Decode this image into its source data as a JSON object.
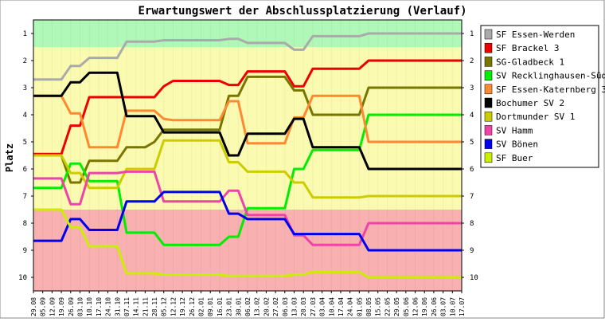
{
  "chart_data": {
    "type": "line",
    "title": "Erwartungswert der Abschlussplatzierung (Verlauf)",
    "ylabel": "Platz",
    "xlabel": "",
    "ylim": [
      1,
      10
    ],
    "y_inverted": true,
    "y_ticks": [
      1,
      2,
      3,
      4,
      5,
      6,
      7,
      8,
      9,
      10
    ],
    "legend_position": "right",
    "bands": [
      {
        "from": 0.5,
        "to": 1.5,
        "color": "#b0f8b8"
      },
      {
        "from": 1.5,
        "to": 7.5,
        "color": "#fafab0"
      },
      {
        "from": 7.5,
        "to": 10.5,
        "color": "#f8b0b0"
      }
    ],
    "x": [
      "29.08",
      "05.09",
      "12.09",
      "19.09",
      "26.09",
      "03.10",
      "10.10",
      "17.10",
      "24.10",
      "31.10",
      "07.11",
      "14.11",
      "21.11",
      "28.11",
      "05.12",
      "12.12",
      "19.12",
      "26.12",
      "02.01",
      "09.01",
      "16.01",
      "23.01",
      "30.01",
      "06.02",
      "13.02",
      "20.02",
      "27.02",
      "06.03",
      "13.03",
      "20.03",
      "27.03",
      "03.04",
      "10.04",
      "17.04",
      "24.04",
      "01.05",
      "08.05",
      "15.05",
      "22.05",
      "29.05",
      "05.06",
      "12.06",
      "19.06",
      "26.06",
      "03.07",
      "10.07",
      "17.07"
    ],
    "series": [
      {
        "name": "SF Essen-Werden",
        "color": "#aaaaaa",
        "values": [
          2.7,
          2.7,
          2.7,
          2.7,
          2.2,
          2.2,
          1.9,
          1.9,
          1.9,
          1.9,
          1.3,
          1.3,
          1.3,
          1.3,
          1.25,
          1.25,
          1.25,
          1.25,
          1.25,
          1.25,
          1.25,
          1.2,
          1.2,
          1.35,
          1.35,
          1.35,
          1.35,
          1.35,
          1.6,
          1.6,
          1.1,
          1.1,
          1.1,
          1.1,
          1.1,
          1.1,
          1.0,
          1.0,
          1.0,
          1.0,
          1.0,
          1.0,
          1.0,
          1.0,
          1.0,
          1.0,
          1.0
        ]
      },
      {
        "name": "SF Brackel 3",
        "color": "#ee0000",
        "values": [
          5.45,
          5.45,
          5.45,
          5.45,
          4.4,
          4.4,
          3.35,
          3.35,
          3.35,
          3.35,
          3.35,
          3.35,
          3.35,
          3.35,
          2.95,
          2.75,
          2.75,
          2.75,
          2.75,
          2.75,
          2.75,
          2.9,
          2.9,
          2.4,
          2.4,
          2.4,
          2.4,
          2.4,
          2.95,
          2.95,
          2.3,
          2.3,
          2.3,
          2.3,
          2.3,
          2.3,
          2.0,
          2.0,
          2.0,
          2.0,
          2.0,
          2.0,
          2.0,
          2.0,
          2.0,
          2.0,
          2.0
        ]
      },
      {
        "name": "SG-Gladbeck 1",
        "color": "#777700",
        "values": [
          5.5,
          5.5,
          5.5,
          5.5,
          6.5,
          6.5,
          5.7,
          5.7,
          5.7,
          5.7,
          5.2,
          5.2,
          5.2,
          5.0,
          4.55,
          4.55,
          4.55,
          4.55,
          4.55,
          4.55,
          4.55,
          3.3,
          3.3,
          2.6,
          2.6,
          2.6,
          2.6,
          2.6,
          3.1,
          3.1,
          4.0,
          4.0,
          4.0,
          4.0,
          4.0,
          4.0,
          3.0,
          3.0,
          3.0,
          3.0,
          3.0,
          3.0,
          3.0,
          3.0,
          3.0,
          3.0,
          3.0
        ]
      },
      {
        "name": "SV Recklinghausen-Süd",
        "color": "#00ee00",
        "values": [
          6.7,
          6.7,
          6.7,
          6.7,
          5.8,
          5.8,
          6.45,
          6.45,
          6.45,
          6.45,
          8.35,
          8.35,
          8.35,
          8.35,
          8.8,
          8.8,
          8.8,
          8.8,
          8.8,
          8.8,
          8.8,
          8.5,
          8.5,
          7.45,
          7.45,
          7.45,
          7.45,
          7.45,
          6.0,
          6.0,
          5.3,
          5.3,
          5.3,
          5.3,
          5.3,
          5.3,
          4.0,
          4.0,
          4.0,
          4.0,
          4.0,
          4.0,
          4.0,
          4.0,
          4.0,
          4.0,
          4.0
        ]
      },
      {
        "name": "SF Essen-Katernberg 3",
        "color": "#ff8833",
        "values": [
          3.3,
          3.3,
          3.3,
          3.3,
          3.95,
          3.95,
          5.2,
          5.2,
          5.2,
          5.2,
          3.85,
          3.85,
          3.85,
          3.85,
          4.15,
          4.2,
          4.2,
          4.2,
          4.2,
          4.2,
          4.2,
          3.5,
          3.5,
          5.05,
          5.05,
          5.05,
          5.05,
          5.05,
          4.1,
          4.1,
          3.3,
          3.3,
          3.3,
          3.3,
          3.3,
          3.3,
          5.0,
          5.0,
          5.0,
          5.0,
          5.0,
          5.0,
          5.0,
          5.0,
          5.0,
          5.0,
          5.0
        ]
      },
      {
        "name": "Bochumer SV 2",
        "color": "#000000",
        "values": [
          3.3,
          3.3,
          3.3,
          3.3,
          2.8,
          2.8,
          2.45,
          2.45,
          2.45,
          2.45,
          4.05,
          4.05,
          4.05,
          4.05,
          4.65,
          4.65,
          4.65,
          4.65,
          4.65,
          4.65,
          4.65,
          5.5,
          5.5,
          4.7,
          4.7,
          4.7,
          4.7,
          4.7,
          4.15,
          4.15,
          5.2,
          5.2,
          5.2,
          5.2,
          5.2,
          5.2,
          6.0,
          6.0,
          6.0,
          6.0,
          6.0,
          6.0,
          6.0,
          6.0,
          6.0,
          6.0,
          6.0
        ]
      },
      {
        "name": "Dortmunder SV 1",
        "color": "#cccc00",
        "values": [
          5.5,
          5.5,
          5.5,
          5.5,
          6.15,
          6.15,
          6.7,
          6.7,
          6.7,
          6.7,
          6.0,
          6.0,
          6.0,
          6.0,
          4.95,
          4.95,
          4.95,
          4.95,
          4.95,
          4.95,
          4.95,
          5.75,
          5.75,
          6.1,
          6.1,
          6.1,
          6.1,
          6.1,
          6.5,
          6.5,
          7.05,
          7.05,
          7.05,
          7.05,
          7.05,
          7.05,
          7.0,
          7.0,
          7.0,
          7.0,
          7.0,
          7.0,
          7.0,
          7.0,
          7.0,
          7.0,
          7.0
        ]
      },
      {
        "name": "SV Hamm",
        "color": "#ee44aa",
        "values": [
          6.35,
          6.35,
          6.35,
          6.35,
          7.3,
          7.3,
          6.15,
          6.15,
          6.15,
          6.15,
          6.1,
          6.1,
          6.1,
          6.1,
          7.2,
          7.2,
          7.2,
          7.2,
          7.2,
          7.2,
          7.2,
          6.8,
          6.8,
          7.7,
          7.7,
          7.7,
          7.7,
          7.7,
          8.45,
          8.45,
          8.8,
          8.8,
          8.8,
          8.8,
          8.8,
          8.8,
          8.0,
          8.0,
          8.0,
          8.0,
          8.0,
          8.0,
          8.0,
          8.0,
          8.0,
          8.0,
          8.0
        ]
      },
      {
        "name": "SV Bönen",
        "color": "#0000ee",
        "values": [
          8.65,
          8.65,
          8.65,
          8.65,
          7.85,
          7.85,
          8.25,
          8.25,
          8.25,
          8.25,
          7.2,
          7.2,
          7.2,
          7.2,
          6.85,
          6.85,
          6.85,
          6.85,
          6.85,
          6.85,
          6.85,
          7.65,
          7.65,
          7.85,
          7.85,
          7.85,
          7.85,
          7.85,
          8.4,
          8.4,
          8.4,
          8.4,
          8.4,
          8.4,
          8.4,
          8.4,
          9.0,
          9.0,
          9.0,
          9.0,
          9.0,
          9.0,
          9.0,
          9.0,
          9.0,
          9.0,
          9.0
        ]
      },
      {
        "name": "SF Buer",
        "color": "#ccee00",
        "values": [
          7.5,
          7.5,
          7.5,
          7.5,
          8.15,
          8.15,
          8.85,
          8.85,
          8.85,
          8.85,
          9.85,
          9.85,
          9.85,
          9.85,
          9.9,
          9.9,
          9.9,
          9.9,
          9.9,
          9.9,
          9.9,
          9.95,
          9.95,
          9.95,
          9.95,
          9.95,
          9.95,
          9.95,
          9.9,
          9.9,
          9.8,
          9.8,
          9.8,
          9.8,
          9.8,
          9.8,
          10.0,
          10.0,
          10.0,
          10.0,
          10.0,
          10.0,
          10.0,
          10.0,
          10.0,
          10.0,
          10.0
        ]
      }
    ]
  }
}
